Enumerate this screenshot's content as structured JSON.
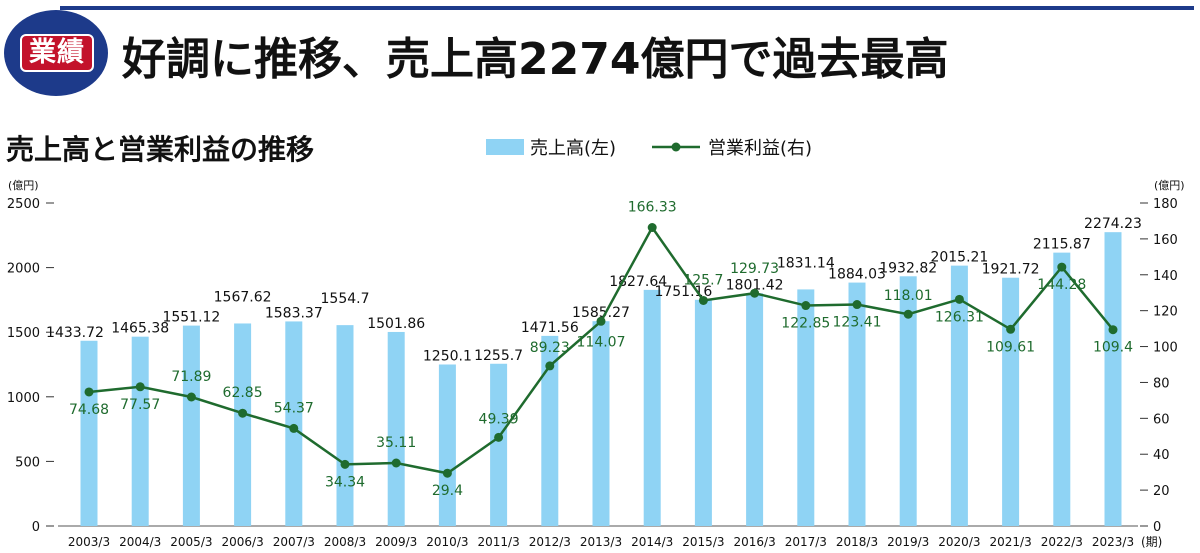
{
  "header": {
    "badge_label": "業績",
    "title": "好調に推移、売上高2274億円で過去最高"
  },
  "colors": {
    "header_blue": "#1d3a8a",
    "badge_red": "#c3122b",
    "bar_fill": "#8fd3f4",
    "line_color": "#1f6b2e",
    "value_label_green": "#1f6b2e"
  },
  "chart_data": {
    "type": "bar",
    "title": "売上高と営業利益の推移",
    "categories": [
      "2003/3",
      "2004/3",
      "2005/3",
      "2006/3",
      "2007/3",
      "2008/3",
      "2009/3",
      "2010/3",
      "2011/3",
      "2012/3",
      "2013/3",
      "2014/3",
      "2015/3",
      "2016/3",
      "2017/3",
      "2018/3",
      "2019/3",
      "2020/3",
      "2021/3",
      "2022/3",
      "2023/3"
    ],
    "x_unit": "(期)",
    "series": [
      {
        "name": "売上高(左)",
        "type": "bar",
        "axis": "left",
        "values": [
          1433.72,
          1465.38,
          1551.12,
          1567.62,
          1583.37,
          1554.7,
          1501.86,
          1250.1,
          1255.7,
          1471.56,
          1585.27,
          1827.64,
          1751.16,
          1801.42,
          1831.14,
          1884.03,
          1932.82,
          2015.21,
          1921.72,
          2115.87,
          2274.23
        ],
        "labels": [
          "1433.72",
          "1465.38",
          "1551.12",
          "1567.62",
          "1583.37",
          "1554.7",
          "1501.86",
          "1250.1",
          "1255.7",
          "1471.56",
          "1585.27",
          "1827.64",
          "1751.16",
          "1801.42",
          "1831.14",
          "1884.03",
          "1932.82",
          "2015.21",
          "1921.72",
          "2115.87",
          "2274.23"
        ]
      },
      {
        "name": "営業利益(右)",
        "type": "line",
        "axis": "right",
        "values": [
          74.68,
          77.57,
          71.89,
          62.85,
          54.37,
          34.34,
          35.11,
          29.4,
          49.39,
          89.23,
          114.07,
          166.33,
          125.7,
          129.73,
          122.85,
          123.41,
          118.01,
          126.31,
          109.61,
          144.28,
          109.4
        ],
        "labels": [
          "74.68",
          "77.57",
          "71.89",
          "62.85",
          "54.37",
          "34.34",
          "35.11",
          "29.4",
          "49.39",
          "89.23",
          "114.07",
          "166.33",
          "125.7",
          "129.73",
          "122.85",
          "123.41",
          "118.01",
          "126.31",
          "109.61",
          "144.28",
          "109.4"
        ]
      }
    ],
    "y_left": {
      "unit": "(億円)",
      "range": [
        0,
        2500
      ],
      "ticks": [
        "0",
        "500",
        "1000",
        "1500",
        "2000",
        "2500"
      ]
    },
    "y_right": {
      "unit": "(億円)",
      "range": [
        0,
        180
      ],
      "ticks": [
        "0",
        "20",
        "40",
        "60",
        "80",
        "100",
        "120",
        "140",
        "160",
        "180"
      ]
    },
    "grid": false,
    "legend": "top"
  }
}
